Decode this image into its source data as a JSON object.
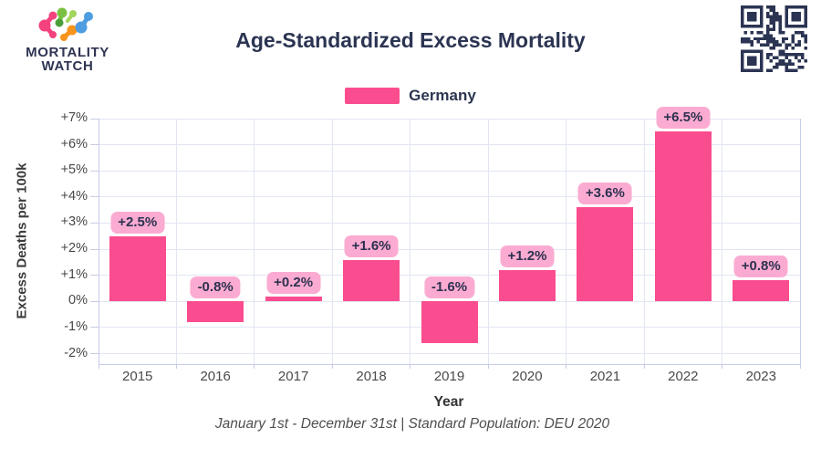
{
  "logo": {
    "line1": "MORTALITY",
    "line2": "WATCH"
  },
  "chart_data": {
    "type": "bar",
    "title": "Age-Standardized Excess Mortality",
    "subtitle": "January 1st - December 31st | Standard Population: DEU 2020",
    "categories": [
      "2015",
      "2016",
      "2017",
      "2018",
      "2019",
      "2020",
      "2021",
      "2022",
      "2023"
    ],
    "series": [
      {
        "name": "Germany",
        "color": "#FA4D8F",
        "values": [
          2.5,
          -0.8,
          0.2,
          1.6,
          -1.6,
          1.2,
          3.6,
          6.5,
          0.8
        ],
        "point_labels": [
          "+2.5%",
          "-0.8%",
          "+0.2%",
          "+1.6%",
          "-1.6%",
          "+1.2%",
          "+3.6%",
          "+6.5%",
          "+0.8%"
        ]
      }
    ],
    "xlabel": "Year",
    "ylabel": "Excess Deaths per 100k",
    "ylim": [
      -2.4,
      7
    ],
    "y_ticks": {
      "values": [
        7,
        6,
        5,
        4,
        3,
        2,
        1,
        0,
        -1,
        -2
      ],
      "labels": [
        "+7%",
        "+6%",
        "+5%",
        "+4%",
        "+3%",
        "+2%",
        "+1%",
        "0%",
        "-1%",
        "-2%"
      ]
    },
    "grid": true,
    "legend_position": "top"
  },
  "colors": {
    "bar": "#FA4D8F",
    "label_pill": "#FBABD1",
    "label_text": "#2D3250",
    "navy": "#2B3452",
    "grid": "#E2E6F3",
    "axis": "#C7CDE6",
    "qr": "#2B3452"
  }
}
